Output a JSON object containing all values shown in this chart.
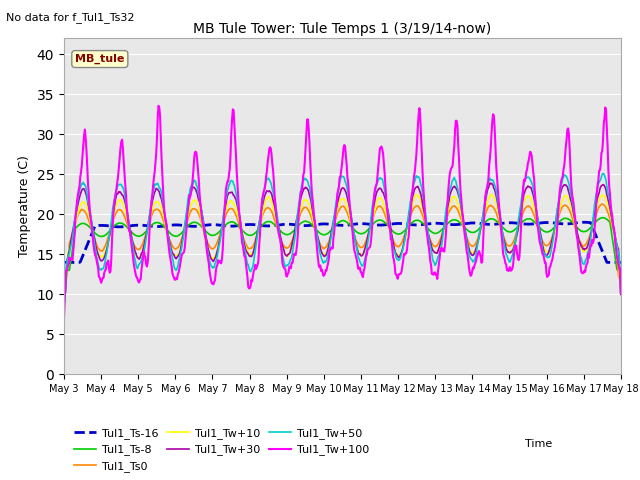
{
  "title": "MB Tule Tower: Tule Temps 1 (3/19/14-now)",
  "subtitle": "No data for f_Tul1_Ts32",
  "ylabel": "Temperature (C)",
  "xlabel": "Time",
  "ylim": [
    0,
    42
  ],
  "yticks": [
    0,
    5,
    10,
    15,
    20,
    25,
    30,
    35,
    40
  ],
  "legend_box_label": "MB_tule",
  "series": {
    "Tul1_Ts-16": {
      "color": "#0000cc",
      "lw": 2.0,
      "ls": "--"
    },
    "Tul1_Ts-8": {
      "color": "#00cc00",
      "lw": 1.2,
      "ls": "-"
    },
    "Tul1_Ts0": {
      "color": "#ff8800",
      "lw": 1.2,
      "ls": "-"
    },
    "Tul1_Tw+10": {
      "color": "#ffff00",
      "lw": 1.2,
      "ls": "-"
    },
    "Tul1_Tw+30": {
      "color": "#aa00aa",
      "lw": 1.2,
      "ls": "-"
    },
    "Tul1_Tw+50": {
      "color": "#00cccc",
      "lw": 1.2,
      "ls": "-"
    },
    "Tul1_Tw+100": {
      "color": "#ff00ff",
      "lw": 1.5,
      "ls": "-"
    }
  },
  "plot_bg": "#e8e8e8",
  "fig_bg": "#ffffff",
  "grid_color": "#ffffff"
}
